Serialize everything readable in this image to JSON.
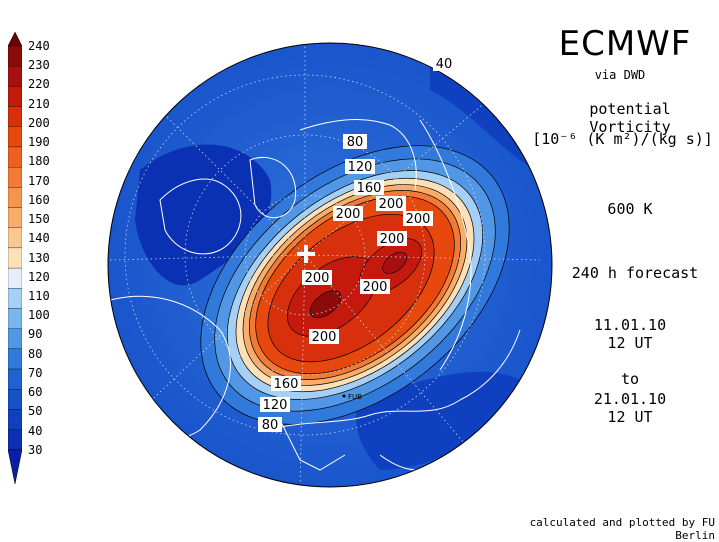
{
  "header": {
    "title": "ECMWF",
    "source": "via DWD",
    "parameter": "potential Vorticity",
    "unit": "[10⁻⁶ (K m²)/(kg s)]",
    "level": "600 K",
    "forecast": "240 h forecast",
    "init_date": "11.01.10",
    "init_time": "12 UT",
    "to_label": "to",
    "valid_date": "21.01.10",
    "valid_time": "12 UT"
  },
  "credit": "calculated and plotted by FU Berlin",
  "station_label": "FUB",
  "colorbar": {
    "levels": [
      "240",
      "230",
      "220",
      "210",
      "200",
      "190",
      "180",
      "170",
      "160",
      "150",
      "140",
      "130",
      "120",
      "110",
      "100",
      "90",
      "80",
      "70",
      "60",
      "50",
      "40",
      "30"
    ],
    "colors": [
      "#6b0000",
      "#8b0a0a",
      "#a81010",
      "#c41a0e",
      "#d8300c",
      "#e6480e",
      "#ee6020",
      "#f37a34",
      "#f6944c",
      "#f8ae6a",
      "#fac88e",
      "#fce0b8",
      "#e6eefa",
      "#a6cff5",
      "#7ab6ee",
      "#5297e6",
      "#3279dc",
      "#1f63d2",
      "#1652ca",
      "#0e40c0",
      "#0a30b4",
      "#0820a8"
    ]
  },
  "contour_labels": [
    {
      "text": "40"
    },
    {
      "text": "80"
    },
    {
      "text": "120"
    },
    {
      "text": "160"
    },
    {
      "text": "200"
    },
    {
      "text": "200"
    },
    {
      "text": "200"
    },
    {
      "text": "200"
    },
    {
      "text": "200"
    },
    {
      "text": "200"
    },
    {
      "text": "200"
    },
    {
      "text": "160"
    },
    {
      "text": "120"
    },
    {
      "text": "80"
    }
  ]
}
